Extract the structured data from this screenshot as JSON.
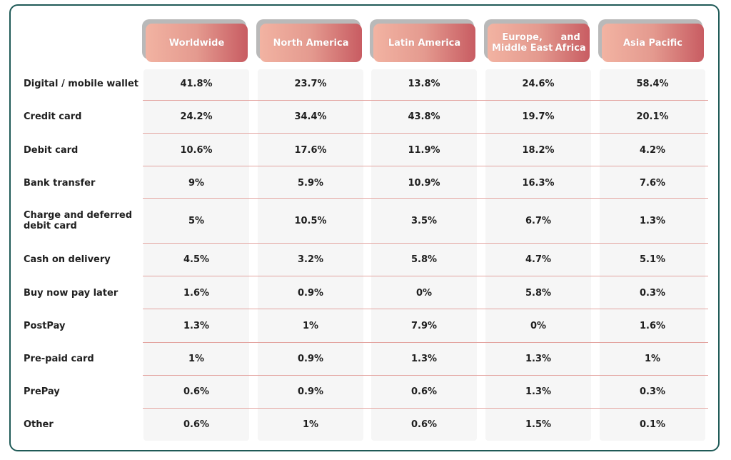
{
  "chart_data": {
    "type": "table",
    "columns": [
      "Worldwide",
      "North America",
      "Latin America",
      "Europe, Middle East and Africa",
      "Asia Pacific"
    ],
    "column_header_lines": [
      [
        "Worldwide"
      ],
      [
        "North America"
      ],
      [
        "Latin America"
      ],
      [
        "Europe, Middle East",
        "and Africa"
      ],
      [
        "Asia Pacific"
      ]
    ],
    "rows": [
      {
        "label": "Digital / mobile wallet",
        "label_lines": [
          "Digital / mobile wallet"
        ],
        "values": [
          "41.8%",
          "23.7%",
          "13.8%",
          "24.6%",
          "58.4%"
        ]
      },
      {
        "label": "Credit card",
        "label_lines": [
          "Credit card"
        ],
        "values": [
          "24.2%",
          "34.4%",
          "43.8%",
          "19.7%",
          "20.1%"
        ]
      },
      {
        "label": "Debit card",
        "label_lines": [
          "Debit card"
        ],
        "values": [
          "10.6%",
          "17.6%",
          "11.9%",
          "18.2%",
          "4.2%"
        ]
      },
      {
        "label": "Bank transfer",
        "label_lines": [
          "Bank transfer"
        ],
        "values": [
          "9%",
          "5.9%",
          "10.9%",
          "16.3%",
          "7.6%"
        ]
      },
      {
        "label": "Charge and deferred debit card",
        "label_lines": [
          "Charge and deferred",
          "debit card"
        ],
        "values": [
          "5%",
          "10.5%",
          "3.5%",
          "6.7%",
          "1.3%"
        ]
      },
      {
        "label": "Cash on delivery",
        "label_lines": [
          "Cash on delivery"
        ],
        "values": [
          "4.5%",
          "3.2%",
          "5.8%",
          "4.7%",
          "5.1%"
        ]
      },
      {
        "label": "Buy now pay later",
        "label_lines": [
          "Buy now pay later"
        ],
        "values": [
          "1.6%",
          "0.9%",
          "0%",
          "5.8%",
          "0.3%"
        ]
      },
      {
        "label": "PostPay",
        "label_lines": [
          "PostPay"
        ],
        "values": [
          "1.3%",
          "1%",
          "7.9%",
          "0%",
          "1.6%"
        ]
      },
      {
        "label": "Pre-paid card",
        "label_lines": [
          "Pre-paid card"
        ],
        "values": [
          "1%",
          "0.9%",
          "1.3%",
          "1.3%",
          "1%"
        ]
      },
      {
        "label": "PrePay",
        "label_lines": [
          "PrePay"
        ],
        "values": [
          "0.6%",
          "0.9%",
          "0.6%",
          "1.3%",
          "0.3%"
        ]
      },
      {
        "label": "Other",
        "label_lines": [
          "Other"
        ],
        "values": [
          "0.6%",
          "1%",
          "0.6%",
          "1.5%",
          "0.1%"
        ]
      }
    ]
  },
  "colors": {
    "frame_border": "#1f5a57",
    "header_gradient_light": "#f2b3a2",
    "header_gradient_dark": "#c85c62",
    "header_shadow": "#b9b9b9",
    "column_band": "#f6f6f6",
    "row_divider": "#e3a4a0",
    "text": "#1f1f1f"
  }
}
